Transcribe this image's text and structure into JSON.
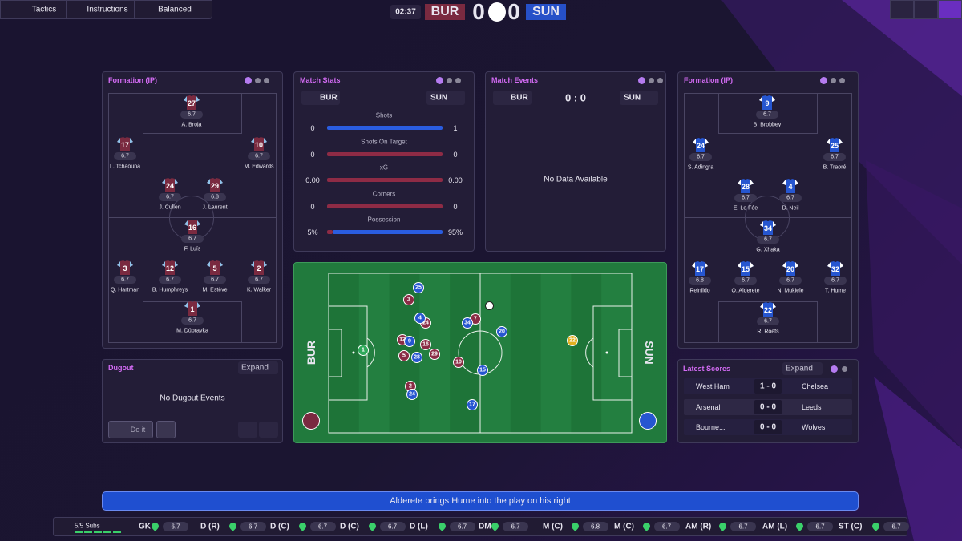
{
  "topbar": {
    "buttons": [
      "Tactics",
      "Instructions",
      "Balanced"
    ],
    "clock": "02:37",
    "home": "BUR",
    "away": "SUN",
    "home_score": 0,
    "away_score": 0
  },
  "formation_home": {
    "title": "Formation (IP)",
    "players": [
      {
        "number": 27,
        "rating": 6.7,
        "name": "A. Broja"
      },
      {
        "number": 17,
        "rating": 6.7,
        "name": "L. Tchaouna"
      },
      {
        "number": 10,
        "rating": 6.7,
        "name": "M. Edwards"
      },
      {
        "number": 24,
        "rating": 6.7,
        "name": "J. Cullen"
      },
      {
        "number": 29,
        "rating": 6.8,
        "name": "J. Laurent"
      },
      {
        "number": 16,
        "rating": 6.7,
        "name": "F. Luís"
      },
      {
        "number": 3,
        "rating": 6.7,
        "name": "Q. Hartman"
      },
      {
        "number": 12,
        "rating": 6.7,
        "name": "B. Humphreys"
      },
      {
        "number": 5,
        "rating": 6.7,
        "name": "M. Estève"
      },
      {
        "number": 2,
        "rating": 6.7,
        "name": "K. Walker"
      },
      {
        "number": 1,
        "rating": 6.7,
        "name": "M. Dúbravka"
      }
    ]
  },
  "formation_away": {
    "title": "Formation (IP)",
    "players": [
      {
        "number": 9,
        "rating": 6.7,
        "name": "B. Brobbey"
      },
      {
        "number": 24,
        "rating": 6.7,
        "name": "S. Adingra"
      },
      {
        "number": 25,
        "rating": 6.7,
        "name": "B. Traoré"
      },
      {
        "number": 28,
        "rating": 6.7,
        "name": "E. Le Fée"
      },
      {
        "number": 4,
        "rating": 6.7,
        "name": "D. Neil"
      },
      {
        "number": 34,
        "rating": 6.7,
        "name": "G. Xhaka"
      },
      {
        "number": 17,
        "rating": 6.8,
        "name": "Reinildo"
      },
      {
        "number": 15,
        "rating": 6.7,
        "name": "O. Alderete"
      },
      {
        "number": 20,
        "rating": 6.7,
        "name": "N. Mukiele"
      },
      {
        "number": 32,
        "rating": 6.7,
        "name": "T. Hume"
      },
      {
        "number": 22,
        "rating": 6.7,
        "name": "R. Roefs"
      }
    ]
  },
  "match_stats": {
    "title": "Match Stats",
    "home": "BUR",
    "away": "SUN",
    "stats": [
      {
        "label": "Shots",
        "home": 0,
        "away": 1
      },
      {
        "label": "Shots On Target",
        "home": 0,
        "away": 0
      },
      {
        "label": "xG",
        "home": {
          "value": 0,
          "label": "0.00"
        },
        "away": {
          "value": 0,
          "label": "0.00"
        }
      },
      {
        "label": "Corners",
        "home": 0,
        "away": 0
      },
      {
        "label": "Possession",
        "home": {
          "value": 5,
          "label": "5%"
        },
        "away": {
          "value": 95,
          "label": "95%"
        }
      }
    ]
  },
  "match_events": {
    "title": "Match Events",
    "home": "BUR",
    "away": "SUN",
    "score": "0 : 0",
    "empty": "No Data Available"
  },
  "pitch": {
    "home": "BUR",
    "away": "SUN",
    "home_players": [
      1,
      3,
      24,
      12,
      16,
      5,
      29,
      10,
      2,
      7
    ],
    "away_players": [
      25,
      4,
      9,
      28,
      34,
      20,
      15,
      24,
      17,
      22
    ]
  },
  "dugout": {
    "title": "Dugout",
    "expand": "Expand",
    "empty": "No Dugout Events",
    "action": "Do it"
  },
  "latest_scores": {
    "title": "Latest Scores",
    "expand": "Expand",
    "rows": [
      [
        "West Ham",
        "1 - 0",
        "Chelsea"
      ],
      [
        "Arsenal",
        "0 - 0",
        "Leeds"
      ],
      [
        "Bourne...",
        "0 - 0",
        "Wolves"
      ]
    ]
  },
  "commentary": "Alderete brings Hume into the play on his right",
  "bottom_bar": {
    "subs": "5/5 Subs",
    "positions": [
      {
        "label": "GK",
        "rating": 6.7
      },
      {
        "label": "D (R)",
        "rating": 6.7
      },
      {
        "label": "D (C)",
        "rating": 6.7
      },
      {
        "label": "D (C)",
        "rating": 6.7
      },
      {
        "label": "D (L)",
        "rating": 6.7
      },
      {
        "label": "DM",
        "rating": 6.7
      },
      {
        "label": "M (C)",
        "rating": 6.8
      },
      {
        "label": "M (C)",
        "rating": 6.7
      },
      {
        "label": "AM (R)",
        "rating": 6.7
      },
      {
        "label": "AM (L)",
        "rating": 6.7
      },
      {
        "label": "ST (C)",
        "rating": 6.7
      }
    ]
  }
}
